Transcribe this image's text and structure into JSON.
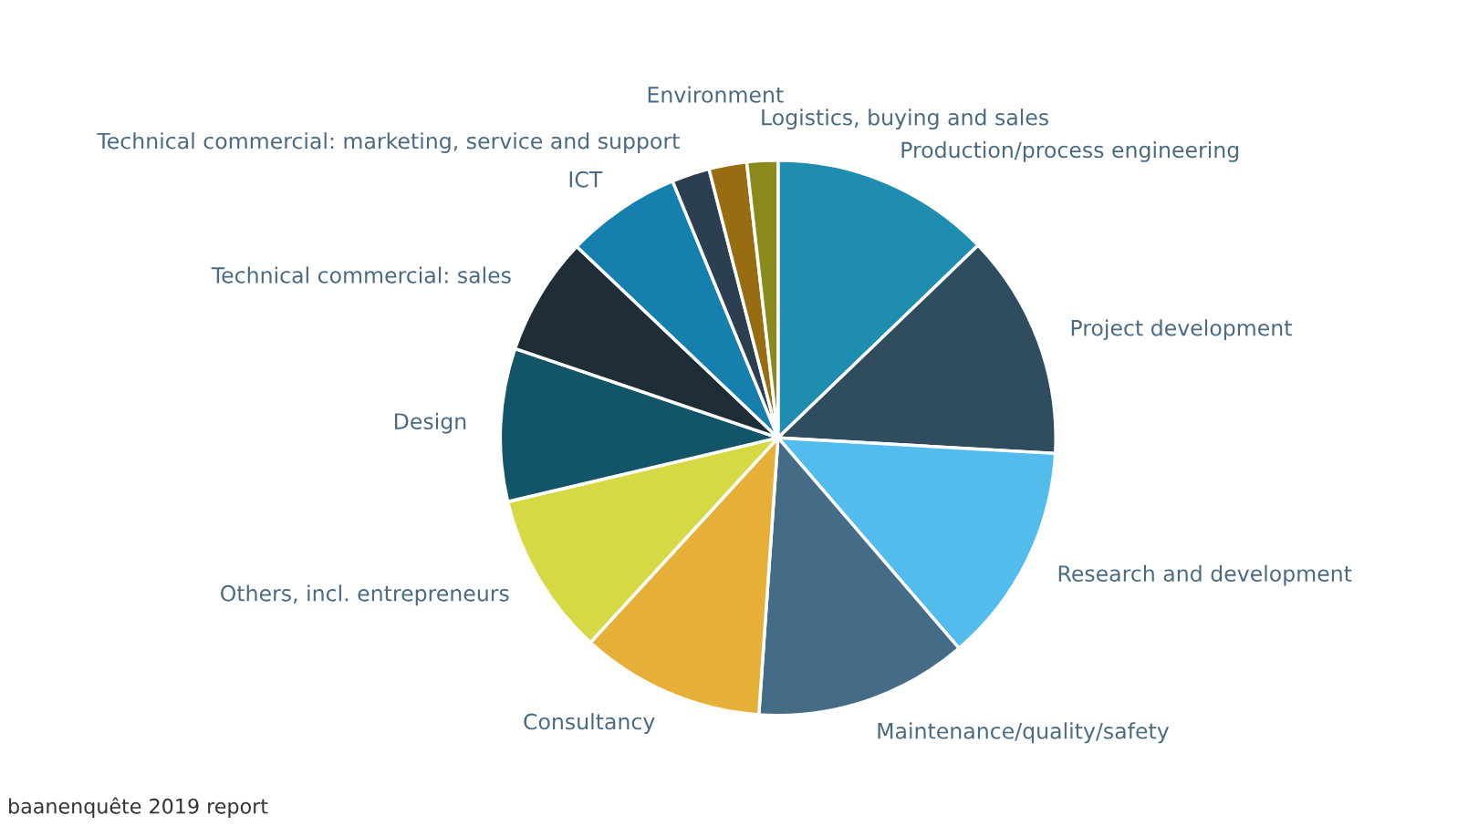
{
  "chart_data": {
    "type": "pie",
    "categories": [
      "Production/process engineering",
      "Project development",
      "Research and development",
      "Maintenance/quality/safety",
      "Consultancy",
      "Others, incl. entrepreneurs",
      "Design",
      "Technical commercial: sales",
      "ICT",
      "Technical commercial: marketing, service and support",
      "Environment",
      "Logistics, buying and sales"
    ],
    "values": [
      12.8,
      13.1,
      12.8,
      12.4,
      10.7,
      9.5,
      8.9,
      6.9,
      6.7,
      2.2,
      2.2,
      1.8
    ],
    "colors": [
      "#1f8db0",
      "#2f4d5f",
      "#52bcec",
      "#456c87",
      "#e6b038",
      "#d5d944",
      "#125468",
      "#1f2d37",
      "#157fae",
      "#2b3f50",
      "#986c10",
      "#8a8a1c"
    ],
    "annotations": [
      "baanenquête 2019 report"
    ]
  }
}
